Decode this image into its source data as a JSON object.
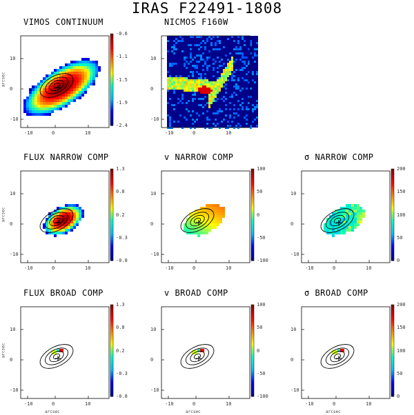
{
  "figure": {
    "title": "IRAS F22491-1808",
    "x_axis_label": "arcsec",
    "y_axis_label": "arcsec",
    "x_ticks": [
      "-10",
      "0",
      "10"
    ],
    "y_ticks": [
      "10",
      "0",
      "-10"
    ]
  },
  "panels": [
    {
      "id": "vimos-continuum",
      "title": "VIMOS CONTINUUM",
      "colorbar": [
        "-0.6",
        "-1.1",
        "-1.5",
        "-1.9",
        "-2.4"
      ],
      "map": "continuum"
    },
    {
      "id": "nicmos-f160w",
      "title": "NICMOS F160W",
      "colorbar": [],
      "map": "nicmos"
    },
    {
      "id": "flux-narrow",
      "title": "FLUX NARROW COMP",
      "colorbar": [
        "1.3",
        "0.8",
        "0.2",
        "-0.3",
        "-0.8"
      ],
      "map": "flux_narrow"
    },
    {
      "id": "v-narrow",
      "title": "v NARROW COMP",
      "colorbar": [
        "100",
        "50",
        "0",
        "-50",
        "-100"
      ],
      "map": "v_narrow"
    },
    {
      "id": "sigma-narrow",
      "title": "σ NARROW COMP",
      "colorbar": [
        "200",
        "150",
        "100",
        "50",
        "0"
      ],
      "map": "sigma_narrow"
    },
    {
      "id": "flux-broad",
      "title": "FLUX BROAD COMP",
      "colorbar": [
        "1.3",
        "0.8",
        "0.2",
        "-0.3",
        "-0.8"
      ],
      "map": "broad"
    },
    {
      "id": "v-broad",
      "title": "v BROAD COMP",
      "colorbar": [
        "100",
        "50",
        "0",
        "-50",
        "-100"
      ],
      "map": "broad"
    },
    {
      "id": "sigma-broad",
      "title": "σ BROAD COMP",
      "colorbar": [
        "200",
        "150",
        "100",
        "50",
        "0"
      ],
      "map": "broad"
    }
  ],
  "colors": {
    "colormap": [
      "#00008b",
      "#0000ff",
      "#00bfff",
      "#00ffc0",
      "#ffff00",
      "#ff8000",
      "#ff0000",
      "#8b0000"
    ],
    "nicmos_background": "#00008b",
    "contour": "#000000"
  }
}
